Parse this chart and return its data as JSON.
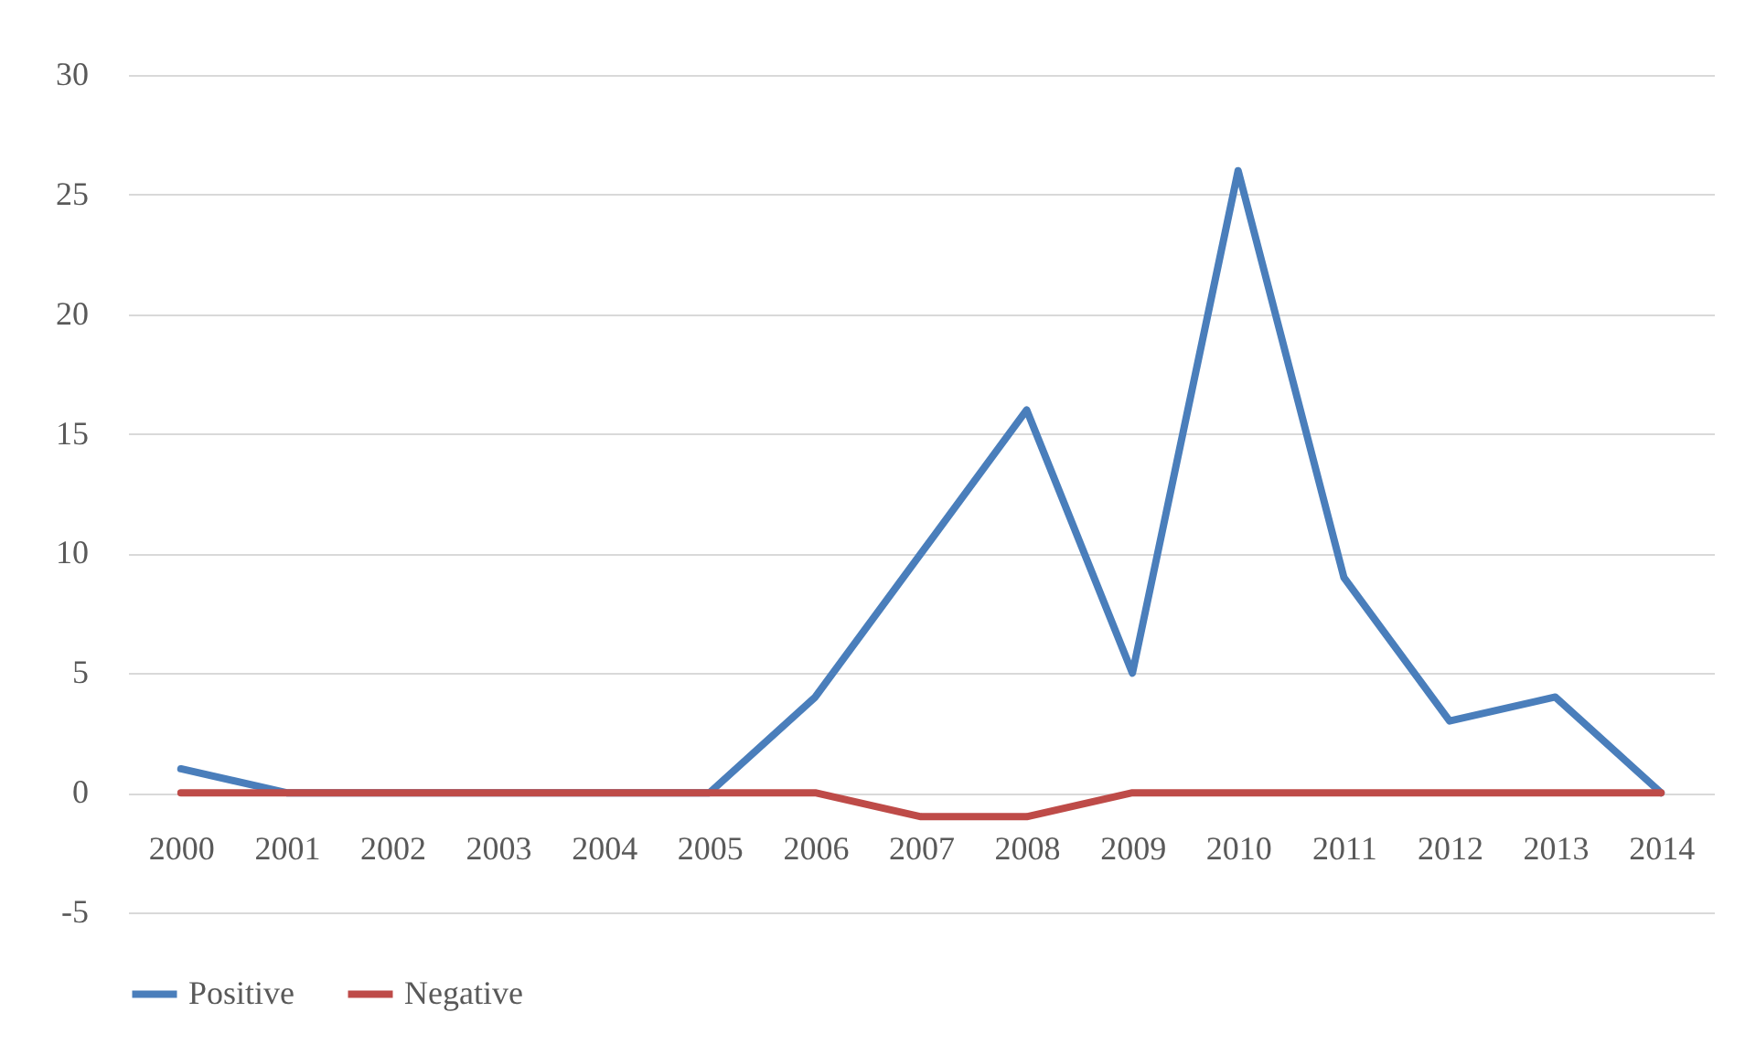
{
  "chart_data": {
    "type": "line",
    "categories": [
      "2000",
      "2001",
      "2002",
      "2003",
      "2004",
      "2005",
      "2006",
      "2007",
      "2008",
      "2009",
      "2010",
      "2011",
      "2012",
      "2013",
      "2014"
    ],
    "series": [
      {
        "name": "Positive",
        "color": "#4a7ebb",
        "values": [
          1,
          0,
          0,
          0,
          0,
          0,
          4,
          10,
          16,
          5,
          26,
          9,
          3,
          4,
          0
        ]
      },
      {
        "name": "Negative",
        "color": "#be4b48",
        "values": [
          0,
          0,
          0,
          0,
          0,
          0,
          0,
          -1,
          -1,
          0,
          0,
          0,
          0,
          0,
          0
        ]
      }
    ],
    "ylim": [
      -5,
      30
    ],
    "yticks": [
      -5,
      0,
      5,
      10,
      15,
      20,
      25,
      30
    ],
    "grid": true,
    "legend": "bottom",
    "line_style": "solid"
  }
}
